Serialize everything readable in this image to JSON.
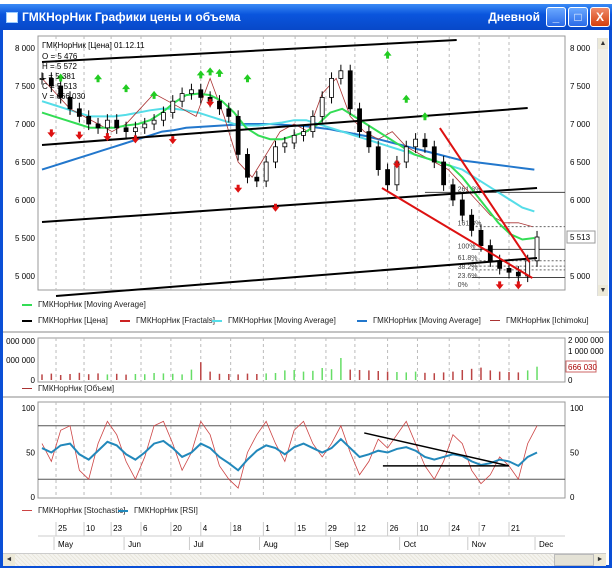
{
  "window": {
    "title": "ГМКНорНик Графики цены и объема",
    "mode": "Дневной",
    "minimize": "_",
    "maximize": "□",
    "close": "X",
    "icon": "chart-icon"
  },
  "info": {
    "header": "ГМКНорНик [Цена] 01.12.11",
    "open": "O = 5 476",
    "high": "H = 5 572",
    "low": "L = 5 381",
    "close": "C = 5 513",
    "volume": "V = 666 030"
  },
  "price_axis": {
    "ticks": [
      8000,
      7500,
      7000,
      6500,
      6000,
      5500,
      5000
    ],
    "tick_labels": [
      "8 000",
      "7 500",
      "7 000",
      "6 500",
      "6 000",
      "5 500",
      "5 000"
    ],
    "last_label": "5 513",
    "last": 5513
  },
  "fib_labels": [
    "261.8%",
    "161.8%",
    "100%",
    "61.8%",
    "38.2%",
    "23.6%",
    "0%"
  ],
  "fib_prices": [
    6100,
    5650,
    5350,
    5200,
    5130,
    5080,
    4980
  ],
  "legend_price": [
    {
      "label": "ГМКНорНик [Moving Average]",
      "color": "#33dd55"
    },
    {
      "label": "ГМКНорНик [Цена]",
      "color": "#000000"
    },
    {
      "label": "ГМКНорНик [Fractals]",
      "color": "#cc2222"
    },
    {
      "label": "ГМКНорНик [Moving Average]",
      "color": "#55dde8"
    },
    {
      "label": "ГМКНорНик [Moving Average]",
      "color": "#2277cc"
    },
    {
      "label": "ГМКНорНик [Ichimoku]",
      "color": "#aa3333"
    }
  ],
  "volume_axis": {
    "left": [
      "000 000",
      "000 000",
      "0"
    ],
    "right": [
      "2 000 000",
      "1 000 000",
      "0"
    ],
    "last_label": "666 030",
    "max": 2000000
  },
  "legend_volume": {
    "label": "ГМКНорНик [Объем]",
    "color": "#aa3333"
  },
  "osc_axis": {
    "labels": [
      "100",
      "50",
      "0"
    ],
    "levels": [
      80,
      20
    ]
  },
  "legend_osc": [
    {
      "label": "ГМКНорНик [Stochastic]",
      "color": "#cc4444"
    },
    {
      "label": "ГМКНорНик [RSI]",
      "color": "#2288bb"
    }
  ],
  "dates": {
    "days": [
      "25",
      "10",
      "23",
      "6",
      "20",
      "4",
      "18",
      "1",
      "15",
      "29",
      "12",
      "26",
      "10",
      "24",
      "7",
      "21"
    ],
    "day_index": [
      1.5,
      4.5,
      7.4,
      10.6,
      13.8,
      17,
      20.2,
      23.7,
      27.1,
      30.4,
      33.5,
      37,
      40.2,
      43.6,
      46.8,
      50
    ],
    "months": [
      "May",
      "Jun",
      "Jul",
      "Aug",
      "Sep",
      "Oct",
      "Nov",
      "Dec"
    ],
    "month_index": [
      3,
      10.5,
      17.5,
      25,
      32.6,
      40,
      47.3,
      54.5
    ]
  },
  "chart_data": {
    "type": "line",
    "title": "ГМКНорНик [Цена]",
    "ylim": [
      4800,
      8150
    ],
    "close": [
      7600,
      7500,
      7350,
      7200,
      7100,
      7000,
      6950,
      7050,
      6950,
      6900,
      6950,
      7000,
      7050,
      7150,
      7300,
      7400,
      7450,
      7350,
      7300,
      7200,
      7100,
      6600,
      6300,
      6250,
      6500,
      6700,
      6750,
      6850,
      6900,
      7100,
      7350,
      7600,
      7700,
      7200,
      6900,
      6700,
      6400,
      6200,
      6500,
      6700,
      6800,
      6700,
      6500,
      6200,
      6000,
      5800,
      5600,
      5400,
      5200,
      5100,
      5050,
      5000,
      5200,
      5513
    ],
    "ma_green": [
      7150,
      7100,
      7050,
      7000,
      6950,
      6950,
      6950,
      6980,
      7000,
      7050,
      7150,
      7280,
      7380,
      7400,
      7380,
      7300,
      7150,
      6950,
      6850,
      6800,
      6800,
      6850,
      6900,
      7000,
      7150,
      7200,
      7100,
      7000,
      6900,
      6800,
      6700,
      6600,
      6550,
      6500,
      6450,
      6300,
      6100,
      5900,
      5700,
      5550,
      5480,
      5500
    ],
    "ma_cyan": [
      7300,
      7250,
      7200,
      7150,
      7100,
      7100,
      7100,
      7120,
      7150,
      7180,
      7200,
      7200,
      7180,
      7150,
      7100,
      7050,
      7000,
      6980,
      6980,
      7000,
      7020,
      7050,
      7050,
      7000,
      6950,
      6900,
      6850,
      6800,
      6750,
      6700,
      6650,
      6600,
      6550,
      6500,
      6450,
      6400,
      6300,
      6200,
      6100,
      6000,
      5900,
      5850
    ],
    "ma_blue": [
      6400,
      6450,
      6500,
      6550,
      6600,
      6650,
      6700,
      6750,
      6800,
      6850,
      6900,
      6920,
      6950,
      6960,
      6970,
      6980,
      6990,
      7000,
      7000,
      7000,
      6990,
      6980,
      6970,
      6950,
      6930,
      6900,
      6870,
      6840,
      6800,
      6760,
      6720,
      6680,
      6640,
      6600,
      6560,
      6520,
      6500,
      6480,
      6460,
      6440,
      6420,
      6400
    ],
    "ichimoku": [
      7600,
      7400,
      7200,
      7100,
      7000,
      6900,
      7000,
      7200,
      7400,
      7300,
      7200,
      7100,
      7600,
      7100,
      6500,
      6300,
      6600,
      6900,
      7000,
      6900,
      7400,
      7600,
      7100,
      6900,
      6800,
      6900,
      6700,
      6600,
      6500,
      6400,
      6200,
      6000,
      5800,
      5700,
      5700,
      5650
    ],
    "volume": [
      280000,
      320000,
      250000,
      300000,
      360000,
      290000,
      330000,
      280000,
      310000,
      270000,
      300000,
      290000,
      350000,
      330000,
      310000,
      280000,
      520000,
      890000,
      420000,
      310000,
      300000,
      280000,
      320000,
      300000,
      330000,
      350000,
      480000,
      500000,
      420000,
      460000,
      600000,
      540000,
      1100000,
      520000,
      500000,
      480000,
      450000,
      420000,
      400000,
      380000,
      420000,
      360000,
      340000,
      380000,
      420000,
      500000,
      560000,
      620000,
      480000,
      420000,
      400000,
      380000,
      480000,
      666030
    ],
    "stochastic": [
      60,
      40,
      75,
      80,
      30,
      20,
      60,
      85,
      70,
      40,
      20,
      45,
      80,
      85,
      60,
      30,
      50,
      85,
      70,
      35,
      20,
      10,
      50,
      70,
      85,
      60,
      40,
      75,
      85,
      60,
      45,
      60,
      80,
      50,
      25,
      40,
      65,
      55,
      70,
      85,
      60,
      35,
      20,
      40,
      70,
      60,
      30,
      15,
      25,
      45,
      35,
      20,
      60,
      80
    ],
    "rsi": [
      55,
      50,
      58,
      60,
      48,
      42,
      52,
      62,
      58,
      48,
      42,
      50,
      60,
      63,
      55,
      45,
      50,
      60,
      55,
      45,
      38,
      30,
      42,
      52,
      58,
      55,
      48,
      56,
      60,
      55,
      50,
      55,
      65,
      55,
      45,
      48,
      52,
      50,
      54,
      56,
      52,
      45,
      42,
      45,
      48,
      46,
      40,
      36,
      38,
      42,
      40,
      35,
      45,
      50
    ],
    "trendlines": [
      [
        0,
        7816,
        44.4,
        8105
      ],
      [
        0,
        6724,
        52,
        7210
      ],
      [
        0,
        5710,
        53,
        6158
      ],
      [
        1.5,
        4737,
        53,
        5237
      ]
    ],
    "red_trendlines": [
      [
        36.4,
        6158,
        52.5,
        4974
      ],
      [
        42.6,
        6947,
        52.2,
        5184
      ]
    ],
    "osc_trendlines": [
      [
        34.5,
        72,
        50,
        35
      ],
      [
        36.5,
        35,
        50,
        35
      ]
    ],
    "fractals_up": [
      [
        2,
        7560
      ],
      [
        6,
        7550
      ],
      [
        9,
        7420
      ],
      [
        12,
        7330
      ],
      [
        17,
        7600
      ],
      [
        18,
        7640
      ],
      [
        19,
        7620
      ],
      [
        22,
        7550
      ],
      [
        37,
        7860
      ],
      [
        39,
        7280
      ],
      [
        41,
        7050
      ]
    ],
    "fractals_down": [
      [
        1,
        6930
      ],
      [
        4,
        6900
      ],
      [
        7,
        6880
      ],
      [
        10,
        6850
      ],
      [
        14,
        6840
      ],
      [
        18,
        7330
      ],
      [
        21,
        6200
      ],
      [
        25,
        5950
      ],
      [
        38,
        6520
      ],
      [
        49,
        4930
      ],
      [
        51,
        4930
      ]
    ]
  }
}
